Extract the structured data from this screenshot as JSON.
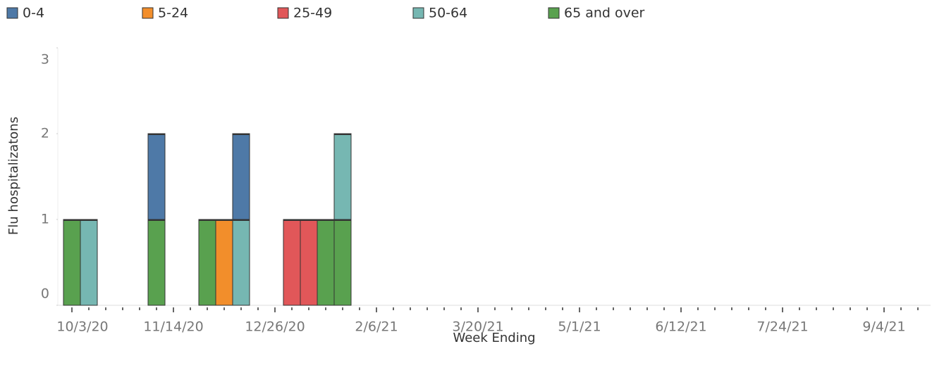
{
  "chart_data": {
    "type": "stacked_bar",
    "y_label": "Flu hospitalizatons",
    "x_label": "Week Ending",
    "categories": [
      "10/3/20",
      null,
      null,
      null,
      null,
      null,
      "11/14/20",
      null,
      null,
      null,
      null,
      null,
      "12/26/20",
      null,
      null,
      null,
      null,
      null,
      "2/6/21",
      null,
      null,
      null,
      null,
      null,
      "3/20/21",
      null,
      null,
      null,
      null,
      null,
      "5/1/21",
      null,
      null,
      null,
      null,
      null,
      "6/12/21",
      null,
      null,
      null,
      null,
      null,
      "7/24/21",
      null,
      null,
      null,
      null,
      null,
      "9/4/21",
      null,
      null
    ],
    "series": [
      {
        "name": "0-4",
        "color": "#4e79a7",
        "values": [
          null,
          null,
          null,
          null,
          null,
          1,
          null,
          null,
          null,
          null,
          1,
          null,
          null,
          null,
          null,
          null,
          null,
          null,
          null,
          null,
          null,
          null,
          null,
          null,
          null,
          null,
          null,
          null,
          null,
          null,
          null,
          null,
          null,
          null,
          null,
          null,
          null,
          null,
          null,
          null,
          null,
          null,
          null,
          null,
          null,
          null,
          null,
          null,
          null,
          null,
          null
        ]
      },
      {
        "name": "5-24",
        "color": "#f28e2b",
        "values": [
          null,
          null,
          null,
          null,
          null,
          null,
          null,
          null,
          null,
          1,
          null,
          null,
          null,
          null,
          null,
          null,
          null,
          null,
          null,
          null,
          null,
          null,
          null,
          null,
          null,
          null,
          null,
          null,
          null,
          null,
          null,
          null,
          null,
          null,
          null,
          null,
          null,
          null,
          null,
          null,
          null,
          null,
          null,
          null,
          null,
          null,
          null,
          null,
          null,
          null,
          null
        ]
      },
      {
        "name": "25-49",
        "color": "#e15759",
        "values": [
          null,
          null,
          null,
          null,
          null,
          null,
          null,
          null,
          null,
          null,
          null,
          null,
          null,
          1,
          1,
          null,
          null,
          null,
          null,
          null,
          null,
          null,
          null,
          null,
          null,
          null,
          null,
          null,
          null,
          null,
          null,
          null,
          null,
          null,
          null,
          null,
          null,
          null,
          null,
          null,
          null,
          null,
          null,
          null,
          null,
          null,
          null,
          null,
          null,
          null,
          null
        ]
      },
      {
        "name": "50-64",
        "color": "#76b7b2",
        "values": [
          null,
          1,
          null,
          null,
          null,
          null,
          null,
          null,
          null,
          null,
          1,
          null,
          null,
          null,
          null,
          null,
          1,
          null,
          null,
          null,
          null,
          null,
          null,
          null,
          null,
          null,
          null,
          null,
          null,
          null,
          null,
          null,
          null,
          null,
          null,
          null,
          null,
          null,
          null,
          null,
          null,
          null,
          null,
          null,
          null,
          null,
          null,
          null,
          null,
          null,
          null
        ]
      },
      {
        "name": "65 and over",
        "color": "#59a14f",
        "values": [
          1,
          null,
          null,
          null,
          null,
          1,
          null,
          null,
          1,
          null,
          null,
          null,
          null,
          null,
          null,
          1,
          1,
          null,
          null,
          null,
          null,
          null,
          null,
          null,
          null,
          null,
          null,
          null,
          null,
          null,
          null,
          null,
          null,
          null,
          null,
          null,
          null,
          null,
          null,
          null,
          null,
          null,
          null,
          null,
          null,
          null,
          null,
          null,
          null,
          null,
          null
        ]
      }
    ],
    "ylim": [
      0,
      3
    ],
    "yticks": [
      0,
      1,
      2,
      3
    ],
    "grid": false,
    "legend": "top"
  }
}
